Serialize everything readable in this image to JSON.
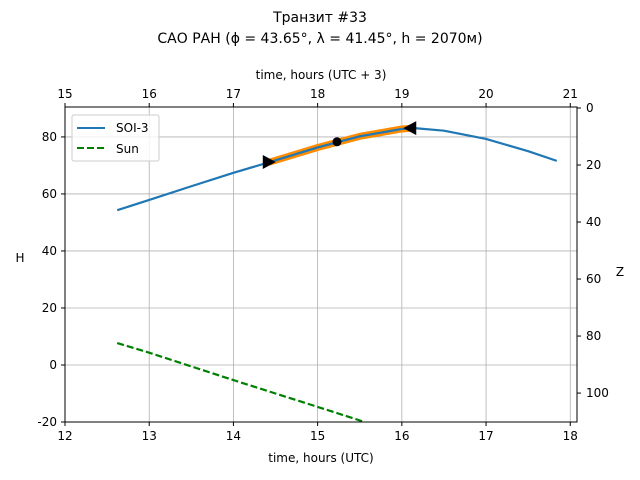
{
  "chart_data": {
    "type": "line",
    "title": "Транзит #33",
    "subtitle": "САО РАН (ϕ = 43.65°, λ = 41.45°, h = 2070м)",
    "xlabel": "time, hours (UTC)",
    "xlabel_top": "time, hours (UTC + 3)",
    "ylabel": "H",
    "ylabel_right": "Z",
    "xlim": [
      12,
      18.08
    ],
    "ylim": [
      -20,
      90.5
    ],
    "xticks": [
      "12",
      "13",
      "14",
      "15",
      "16",
      "17",
      "18"
    ],
    "xticks_top": [
      "15",
      "16",
      "17",
      "18",
      "19",
      "20",
      "21"
    ],
    "yticks": [
      "-20",
      "0",
      "20",
      "40",
      "60",
      "80"
    ],
    "yticks_right": [
      "0",
      "20",
      "40",
      "60",
      "80",
      "100"
    ],
    "grid": true,
    "legend": "top-left",
    "series": [
      {
        "name": "SOI-3",
        "style": "solid",
        "color": "#1f77b4",
        "x": [
          12.62,
          13,
          13.5,
          14,
          14.5,
          15,
          15.5,
          16,
          16.15,
          16.5,
          17,
          17.5,
          17.84
        ],
        "y": [
          54.3,
          57.9,
          62.7,
          67.4,
          71.8,
          76.3,
          80.2,
          82.8,
          83.1,
          82.2,
          79.3,
          75,
          71.6
        ]
      },
      {
        "name": "Sun",
        "style": "dashed",
        "color": "#008000",
        "x": [
          12.62,
          13,
          13.5,
          14,
          14.5,
          15,
          15.56
        ],
        "y": [
          7.7,
          4.3,
          -0.5,
          -5.3,
          -10,
          -14.7,
          -20
        ]
      }
    ],
    "highlight": {
      "color": "#ff8c00",
      "x_start": 14.42,
      "x_end": 16.1
    },
    "markers": [
      {
        "type": "triangle-right",
        "x": 14.42,
        "y": 71.2
      },
      {
        "type": "dot",
        "x": 15.23,
        "y": 78.3
      },
      {
        "type": "triangle-left",
        "x": 16.1,
        "y": 83.1
      }
    ]
  }
}
